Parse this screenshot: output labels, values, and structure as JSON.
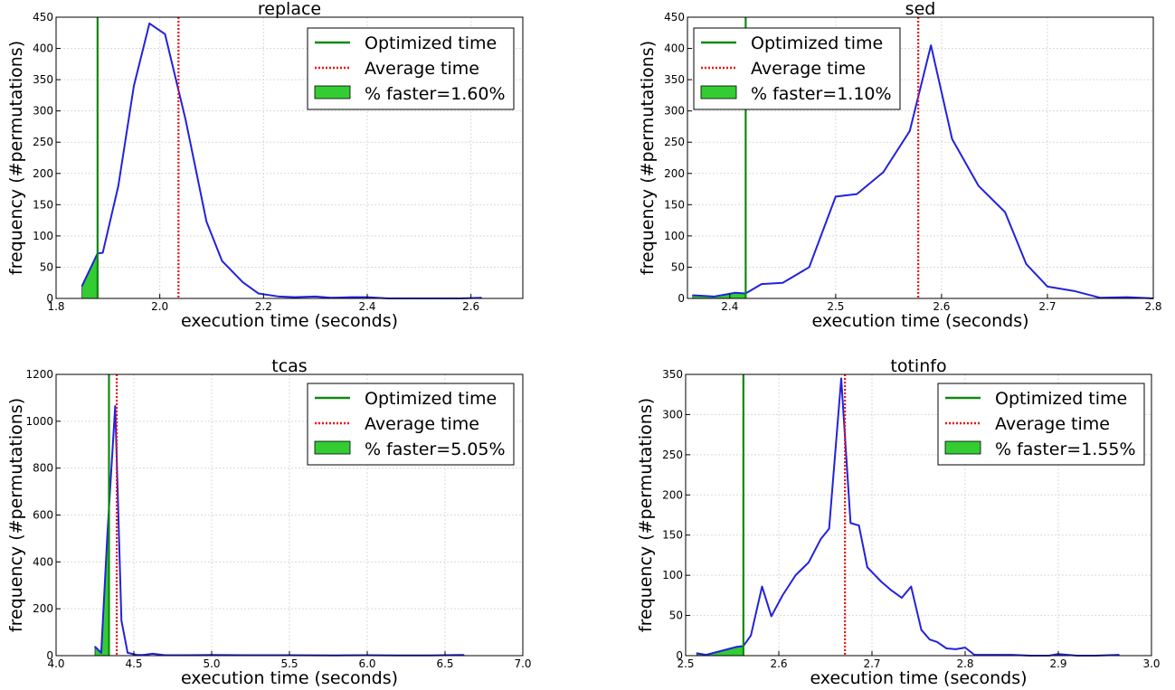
{
  "figure": {
    "xlabel": "execution time (seconds)",
    "ylabel": "frequency (#permutations)",
    "colors": {
      "series": "#2222dd",
      "optimized": "#118811",
      "average": "#ee1111",
      "fill": "#33cc33"
    }
  },
  "chart_data": [
    {
      "type": "line",
      "title": "replace",
      "xlabel": "execution time (seconds)",
      "ylabel": "frequency (#permutations)",
      "xlim": [
        1.8,
        2.7
      ],
      "ylim": [
        0,
        450
      ],
      "xticks": [
        1.8,
        2.0,
        2.2,
        2.4,
        2.6
      ],
      "xtick_labels": [
        "1.8",
        "2.0",
        "2.2",
        "2.4",
        "2.6"
      ],
      "yticks": [
        0,
        50,
        100,
        150,
        200,
        250,
        300,
        350,
        400,
        450
      ],
      "ytick_labels": [
        "0",
        "50",
        "100",
        "150",
        "200",
        "250",
        "300",
        "350",
        "400",
        "450"
      ],
      "grid": true,
      "legend_position": "top-right",
      "series": {
        "x": [
          1.85,
          1.88,
          1.89,
          1.92,
          1.95,
          1.98,
          2.01,
          2.05,
          2.09,
          2.12,
          2.16,
          2.19,
          2.23,
          2.26,
          2.3,
          2.33,
          2.37,
          2.4,
          2.44,
          2.47,
          2.51,
          2.54,
          2.58,
          2.62
        ],
        "y": [
          20,
          72,
          73,
          180,
          340,
          440,
          423,
          285,
          123,
          60,
          26,
          8,
          3,
          2,
          3,
          1,
          2,
          2,
          0,
          0,
          0,
          0,
          0,
          1
        ]
      },
      "optimized_time": 1.88,
      "average_time": 2.036,
      "legend": {
        "optimized": "Optimized time",
        "average": "Average time",
        "faster": "% faster=1.60%"
      }
    },
    {
      "type": "line",
      "title": "sed",
      "xlabel": "execution time (seconds)",
      "ylabel": "frequency (#permutations)",
      "xlim": [
        2.36,
        2.8
      ],
      "ylim": [
        0,
        450
      ],
      "xticks": [
        2.4,
        2.5,
        2.6,
        2.7,
        2.8
      ],
      "xtick_labels": [
        "2.4",
        "2.5",
        "2.6",
        "2.7",
        "2.8"
      ],
      "yticks": [
        0,
        50,
        100,
        150,
        200,
        250,
        300,
        350,
        400,
        450
      ],
      "ytick_labels": [
        "0",
        "50",
        "100",
        "150",
        "200",
        "250",
        "300",
        "350",
        "400",
        "450"
      ],
      "grid": true,
      "legend_position": "top-left",
      "series": {
        "x": [
          2.365,
          2.385,
          2.405,
          2.415,
          2.43,
          2.45,
          2.475,
          2.5,
          2.52,
          2.545,
          2.57,
          2.59,
          2.61,
          2.635,
          2.66,
          2.68,
          2.7,
          2.725,
          2.75,
          2.775,
          2.8
        ],
        "y": [
          5,
          3,
          9,
          8,
          23,
          25,
          50,
          163,
          167,
          202,
          268,
          405,
          255,
          180,
          138,
          55,
          19,
          12,
          1,
          2,
          0
        ]
      },
      "optimized_time": 2.415,
      "average_time": 2.578,
      "legend": {
        "optimized": "Optimized time",
        "average": "Average time",
        "faster": "% faster=1.10%"
      }
    },
    {
      "type": "line",
      "title": "tcas",
      "xlabel": "execution time (seconds)",
      "ylabel": "frequency (#permutations)",
      "xlim": [
        4.0,
        7.0
      ],
      "ylim": [
        0,
        1200
      ],
      "xticks": [
        4.0,
        4.5,
        5.0,
        5.5,
        6.0,
        6.5,
        7.0
      ],
      "xtick_labels": [
        "4.0",
        "4.5",
        "5.0",
        "5.5",
        "6.0",
        "6.5",
        "7.0"
      ],
      "yticks": [
        0,
        200,
        400,
        600,
        800,
        1000,
        1200
      ],
      "ytick_labels": [
        "0",
        "200",
        "400",
        "600",
        "800",
        "1000",
        "1200"
      ],
      "grid": true,
      "legend_position": "top-right",
      "series": {
        "x": [
          4.25,
          4.29,
          4.33,
          4.38,
          4.42,
          4.46,
          4.52,
          4.56,
          4.62,
          4.7,
          4.85,
          5.0,
          5.2,
          5.5,
          5.8,
          6.0,
          6.2,
          6.4,
          6.62
        ],
        "y": [
          38,
          12,
          520,
          1065,
          150,
          12,
          3,
          3,
          8,
          2,
          2,
          3,
          2,
          2,
          1,
          2,
          1,
          1,
          3
        ]
      },
      "optimized_time": 4.34,
      "average_time": 4.39,
      "legend": {
        "optimized": "Optimized time",
        "average": "Average time",
        "faster": "% faster=5.05%"
      }
    },
    {
      "type": "line",
      "title": "totinfo",
      "xlabel": "execution time (seconds)",
      "ylabel": "frequency (#permutations)",
      "xlim": [
        2.5,
        3.0
      ],
      "ylim": [
        0,
        350
      ],
      "xticks": [
        2.5,
        2.6,
        2.7,
        2.8,
        2.9,
        3.0
      ],
      "xtick_labels": [
        "2.5",
        "2.6",
        "2.7",
        "2.8",
        "2.9",
        "3.0"
      ],
      "yticks": [
        0,
        50,
        100,
        150,
        200,
        250,
        300,
        350
      ],
      "ytick_labels": [
        "0",
        "50",
        "100",
        "150",
        "200",
        "250",
        "300",
        "350"
      ],
      "grid": true,
      "legend_position": "top-right",
      "series": {
        "x": [
          2.512,
          2.522,
          2.542,
          2.555,
          2.562,
          2.57,
          2.582,
          2.592,
          2.604,
          2.618,
          2.632,
          2.645,
          2.654,
          2.667,
          2.677,
          2.686,
          2.695,
          2.71,
          2.72,
          2.732,
          2.742,
          2.753,
          2.762,
          2.77,
          2.78,
          2.79,
          2.8,
          2.81,
          2.82,
          2.83,
          2.85,
          2.87,
          2.88,
          2.89,
          2.9,
          2.92,
          2.94,
          2.965
        ],
        "y": [
          3,
          1,
          7,
          11,
          12,
          25,
          86,
          49,
          75,
          100,
          116,
          145,
          158,
          345,
          165,
          162,
          110,
          92,
          82,
          72,
          86,
          32,
          20,
          17,
          9,
          8,
          10,
          1,
          1,
          1,
          1,
          0,
          0,
          0,
          2,
          0,
          0,
          1
        ]
      },
      "optimized_time": 2.562,
      "average_time": 2.671,
      "legend": {
        "optimized": "Optimized time",
        "average": "Average time",
        "faster": "% faster=1.55%"
      }
    }
  ]
}
